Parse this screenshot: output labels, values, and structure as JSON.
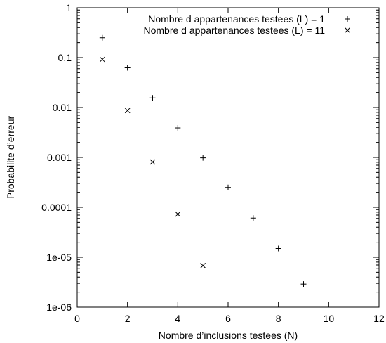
{
  "chart_data": {
    "type": "scatter",
    "title": "",
    "xlabel": "Nombre d’inclusions testees (N)",
    "ylabel": "Probabilite d’erreur",
    "xlim": [
      0,
      12
    ],
    "ylim": [
      1e-06,
      1
    ],
    "y_scale": "log",
    "grid": false,
    "legend_position": "top-right",
    "x_ticks": [
      "0",
      "2",
      "4",
      "6",
      "8",
      "10",
      "12"
    ],
    "y_ticks": [
      "1e-06",
      "1e-05",
      "0.0001",
      "0.001",
      "0.01",
      "0.1",
      "1"
    ],
    "series": [
      {
        "name": "Nombre d appartenances testees (L) = 1",
        "marker": "plus",
        "points": [
          {
            "x": 1,
            "y": 0.25
          },
          {
            "x": 2,
            "y": 0.0625
          },
          {
            "x": 3,
            "y": 0.0156
          },
          {
            "x": 4,
            "y": 0.0039
          },
          {
            "x": 5,
            "y": 0.00098
          },
          {
            "x": 6,
            "y": 0.00025
          },
          {
            "x": 7,
            "y": 6.1e-05
          },
          {
            "x": 8,
            "y": 1.5e-05
          },
          {
            "x": 9,
            "y": 2.9e-06
          }
        ]
      },
      {
        "name": "Nombre d appartenances testees (L) = 11",
        "marker": "cross",
        "points": [
          {
            "x": 1,
            "y": 0.092
          },
          {
            "x": 2,
            "y": 0.0087
          },
          {
            "x": 3,
            "y": 0.00081
          },
          {
            "x": 4,
            "y": 7.3e-05
          },
          {
            "x": 5,
            "y": 6.8e-06
          }
        ]
      }
    ]
  }
}
